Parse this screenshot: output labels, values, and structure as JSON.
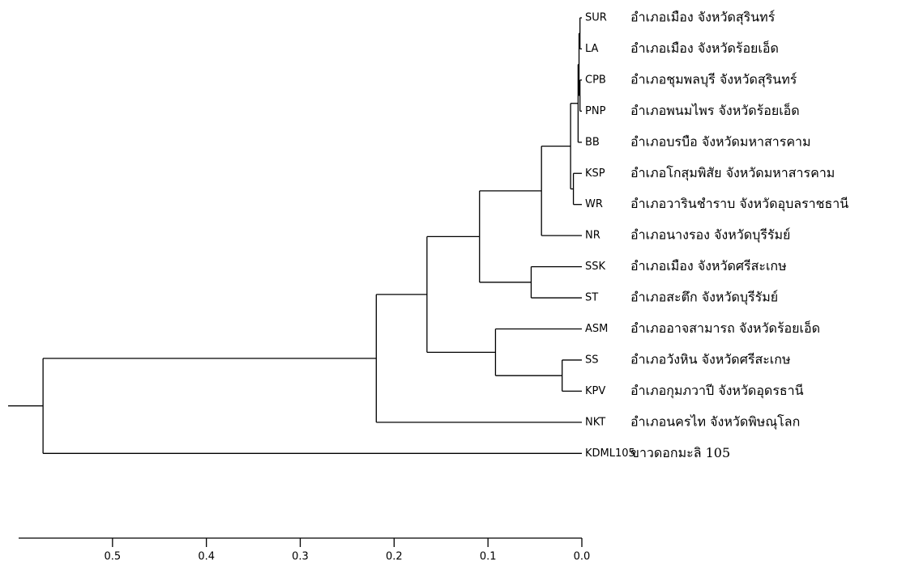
{
  "chart_data": {
    "type": "dendrogram",
    "xlim": [
      0.6,
      0
    ],
    "xticks": [
      0.5,
      0.4,
      0.3,
      0.2,
      0.1,
      {
        "value": 0,
        "label": "0.0"
      }
    ],
    "color": "#000000",
    "tree": {
      "height": 0.574,
      "children": [
        {
          "height": 0.219,
          "children": [
            {
              "height": 0.165,
              "children": [
                {
                  "height": 0.109,
                  "children": [
                    {
                      "height": 0.043,
                      "children": [
                        {
                          "height": 0.012,
                          "children": [
                            {
                              "height": 0.004,
                              "children": [
                                {
                                  "height": 0.003,
                                  "children": [
                                    {
                                      "height": 0.002,
                                      "children": [
                                        {
                                          "code": "SUR",
                                          "label": "อำเภอเมือง จังหวัดสุรินทร์"
                                        },
                                        {
                                          "code": "LA",
                                          "label": "อำเภอเมือง จังหวัดร้อยเอ็ด"
                                        }
                                      ]
                                    },
                                    {
                                      "height": 0.002,
                                      "children": [
                                        {
                                          "code": "CPB",
                                          "label": "อำเภอชุมพลบุรี จังหวัดสุรินทร์"
                                        },
                                        {
                                          "code": "PNP",
                                          "label": "อำเภอพนมไพร จังหวัดร้อยเอ็ด"
                                        }
                                      ]
                                    }
                                  ]
                                },
                                {
                                  "code": "BB",
                                  "label": "อำเภอบรบือ จังหวัดมหาสารคาม"
                                }
                              ]
                            },
                            {
                              "height": 0.009,
                              "children": [
                                {
                                  "code": "KSP",
                                  "label": "อำเภอโกสุมพิสัย จังหวัดมหาสารคาม"
                                },
                                {
                                  "code": "WR",
                                  "label": "อำเภอวารินชำราบ จังหวัดอุบลราชธานี"
                                }
                              ]
                            }
                          ]
                        },
                        {
                          "code": "NR",
                          "label": "อำเภอนางรอง จังหวัดบุรีรัมย์"
                        }
                      ]
                    },
                    {
                      "height": 0.054,
                      "children": [
                        {
                          "code": "SSK",
                          "label": "อำเภอเมือง จังหวัดศรีสะเกษ"
                        },
                        {
                          "code": "ST",
                          "label": "อำเภอสะตึก จังหวัดบุรีรัมย์"
                        }
                      ]
                    }
                  ]
                },
                {
                  "height": 0.092,
                  "children": [
                    {
                      "code": "ASM",
                      "label": "อำเภออาจสามารถ จังหวัดร้อยเอ็ด"
                    },
                    {
                      "height": 0.021,
                      "children": [
                        {
                          "code": "SS",
                          "label": "อำเภอวังหิน จังหวัดศรีสะเกษ"
                        },
                        {
                          "code": "KPV",
                          "label": "อำเภอกุมภวาปี จังหวัดอุดรธานี"
                        }
                      ]
                    }
                  ]
                }
              ]
            },
            {
              "code": "NKT",
              "label": "อำเภอนครไท จังหวัดพิษณุโลก"
            }
          ]
        },
        {
          "code": "KDML105",
          "label": "ขาวดอกมะลิ 105"
        }
      ]
    }
  }
}
